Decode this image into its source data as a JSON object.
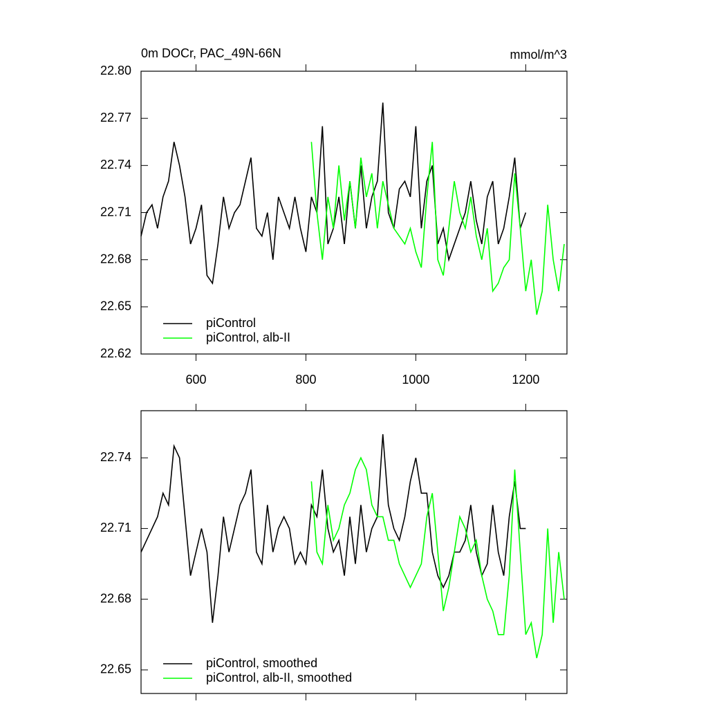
{
  "chart_data": [
    {
      "type": "line",
      "title": "0m DOCr, PAC_49N-66N",
      "y_unit_label": "mmol/m^3",
      "x": [
        500,
        510,
        520,
        530,
        540,
        550,
        560,
        570,
        580,
        590,
        600,
        610,
        620,
        630,
        640,
        650,
        660,
        670,
        680,
        690,
        700,
        710,
        720,
        730,
        740,
        750,
        760,
        770,
        780,
        790,
        800,
        810,
        820,
        830,
        840,
        850,
        860,
        870,
        880,
        890,
        900,
        910,
        920,
        930,
        940,
        950,
        960,
        970,
        980,
        990,
        1000,
        1010,
        1020,
        1030,
        1040,
        1050,
        1060,
        1070,
        1080,
        1090,
        1100,
        1110,
        1120,
        1130,
        1140,
        1150,
        1160,
        1170,
        1180,
        1190,
        1200,
        1210,
        1220,
        1230,
        1240,
        1250,
        1260,
        1270
      ],
      "xlim": [
        500,
        1275
      ],
      "xticks": [
        600,
        800,
        1000,
        1200
      ],
      "ylim": [
        22.62,
        22.8
      ],
      "yticks": [
        22.62,
        22.65,
        22.68,
        22.71,
        22.74,
        22.77,
        {
          "value": 22.8,
          "label": "22.80"
        }
      ],
      "series": [
        {
          "name": "piControl",
          "color": "#000000",
          "values": [
            22.695,
            22.71,
            22.715,
            22.7,
            22.72,
            22.73,
            22.755,
            22.74,
            22.72,
            22.69,
            22.7,
            22.715,
            22.67,
            22.665,
            22.69,
            22.72,
            22.7,
            22.71,
            22.715,
            22.73,
            22.745,
            22.7,
            22.695,
            22.71,
            22.68,
            22.72,
            22.71,
            22.7,
            22.72,
            22.7,
            22.685,
            22.72,
            22.71,
            22.765,
            22.69,
            22.7,
            22.72,
            22.69,
            22.73,
            22.7,
            22.74,
            22.7,
            22.72,
            22.73,
            22.78,
            22.71,
            22.7,
            22.725,
            22.73,
            22.72,
            22.765,
            22.7,
            22.73,
            22.74,
            22.69,
            22.7,
            22.68,
            22.69,
            22.7,
            22.71,
            22.73,
            22.705,
            22.69,
            22.72,
            22.73,
            22.69,
            22.7,
            22.72,
            22.745,
            22.7,
            22.71,
            null,
            null,
            null,
            null,
            null,
            null,
            null
          ]
        },
        {
          "name": "piControl, alb-II",
          "color": "#00ff00",
          "values": [
            null,
            null,
            null,
            null,
            null,
            null,
            null,
            null,
            null,
            null,
            null,
            null,
            null,
            null,
            null,
            null,
            null,
            null,
            null,
            null,
            null,
            null,
            null,
            null,
            null,
            null,
            null,
            null,
            null,
            null,
            null,
            22.755,
            22.71,
            22.68,
            22.72,
            22.7,
            22.74,
            22.705,
            22.73,
            22.7,
            22.745,
            22.72,
            22.735,
            22.7,
            22.73,
            22.715,
            22.7,
            22.695,
            22.69,
            22.7,
            22.685,
            22.675,
            22.72,
            22.755,
            22.68,
            22.67,
            22.7,
            22.73,
            22.71,
            22.7,
            22.72,
            22.695,
            22.68,
            22.7,
            22.66,
            22.665,
            22.675,
            22.68,
            22.735,
            22.7,
            22.66,
            22.68,
            22.645,
            22.66,
            22.715,
            22.68,
            22.66,
            22.69
          ]
        }
      ]
    },
    {
      "type": "line",
      "x": [
        500,
        510,
        520,
        530,
        540,
        550,
        560,
        570,
        580,
        590,
        600,
        610,
        620,
        630,
        640,
        650,
        660,
        670,
        680,
        690,
        700,
        710,
        720,
        730,
        740,
        750,
        760,
        770,
        780,
        790,
        800,
        810,
        820,
        830,
        840,
        850,
        860,
        870,
        880,
        890,
        900,
        910,
        920,
        930,
        940,
        950,
        960,
        970,
        980,
        990,
        1000,
        1010,
        1020,
        1030,
        1040,
        1050,
        1060,
        1070,
        1080,
        1090,
        1100,
        1110,
        1120,
        1130,
        1140,
        1150,
        1160,
        1170,
        1180,
        1190,
        1200,
        1210,
        1220,
        1230,
        1240,
        1250,
        1260,
        1270
      ],
      "xlim": [
        500,
        1275
      ],
      "xticks": [
        600,
        800,
        1000,
        1200
      ],
      "ylim": [
        22.64,
        22.76
      ],
      "yticks": [
        22.65,
        22.68,
        22.71,
        22.74
      ],
      "series": [
        {
          "name": "piControl, smoothed",
          "color": "#000000",
          "values": [
            22.7,
            22.705,
            22.71,
            22.715,
            22.725,
            22.72,
            22.745,
            22.74,
            22.715,
            22.69,
            22.7,
            22.71,
            22.7,
            22.67,
            22.69,
            22.715,
            22.7,
            22.71,
            22.72,
            22.725,
            22.735,
            22.7,
            22.695,
            22.72,
            22.7,
            22.71,
            22.715,
            22.71,
            22.695,
            22.7,
            22.695,
            22.72,
            22.715,
            22.735,
            22.71,
            22.7,
            22.705,
            22.69,
            22.715,
            22.695,
            22.72,
            22.7,
            22.71,
            22.715,
            22.75,
            22.72,
            22.71,
            22.705,
            22.715,
            22.73,
            22.74,
            22.725,
            22.725,
            22.7,
            22.69,
            22.685,
            22.69,
            22.7,
            22.7,
            22.705,
            22.72,
            22.7,
            22.69,
            22.695,
            22.72,
            22.7,
            22.69,
            22.715,
            22.73,
            22.71,
            22.71,
            null,
            null,
            null,
            null,
            null,
            null,
            null
          ]
        },
        {
          "name": "piControl, alb-II, smoothed",
          "color": "#00ff00",
          "values": [
            null,
            null,
            null,
            null,
            null,
            null,
            null,
            null,
            null,
            null,
            null,
            null,
            null,
            null,
            null,
            null,
            null,
            null,
            null,
            null,
            null,
            null,
            null,
            null,
            null,
            null,
            null,
            null,
            null,
            null,
            null,
            22.73,
            22.7,
            22.695,
            22.72,
            22.705,
            22.71,
            22.72,
            22.725,
            22.735,
            22.74,
            22.735,
            22.72,
            22.715,
            22.715,
            22.705,
            22.705,
            22.695,
            22.69,
            22.685,
            22.69,
            22.695,
            22.715,
            22.725,
            22.7,
            22.675,
            22.685,
            22.7,
            22.715,
            22.71,
            22.7,
            22.705,
            22.69,
            22.68,
            22.675,
            22.665,
            22.665,
            22.69,
            22.735,
            22.7,
            22.665,
            22.67,
            22.655,
            22.665,
            22.71,
            22.67,
            22.7,
            22.68
          ]
        }
      ]
    }
  ]
}
